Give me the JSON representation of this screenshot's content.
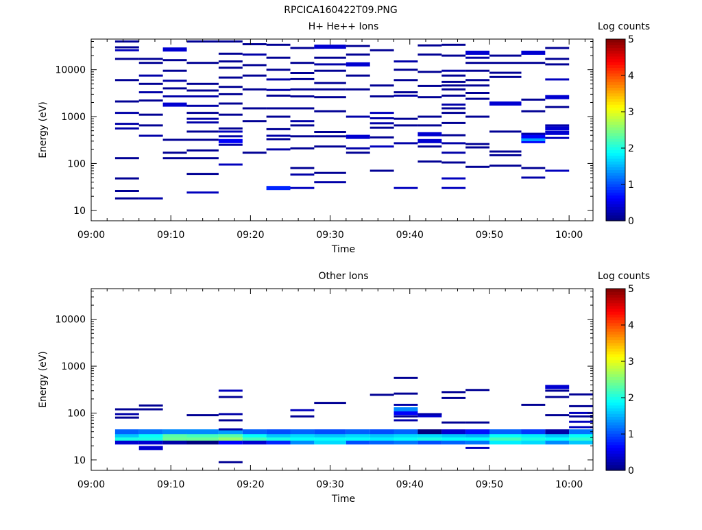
{
  "title": "RPCICA160422T09.PNG",
  "colorbar": {
    "label": "Log counts",
    "min": 0,
    "max": 5,
    "ticks": [
      "0",
      "1",
      "2",
      "3",
      "4",
      "5"
    ],
    "colormap": "jet"
  },
  "chart_data": [
    {
      "type": "heatmap",
      "title": "H+ He++ Ions",
      "xlabel": "Time",
      "ylabel": "Energy (eV)",
      "x_scale": "time",
      "y_scale": "log",
      "xlim": [
        "09:00",
        "10:03"
      ],
      "ylim": [
        6,
        45000
      ],
      "x_ticks": [
        "09:00",
        "09:10",
        "09:20",
        "09:30",
        "09:40",
        "09:50",
        "10:00"
      ],
      "y_ticks": [
        "10",
        "100",
        "1000",
        "10000"
      ],
      "value_label": "Log counts",
      "time_bins": [
        "09:03",
        "09:06",
        "09:09",
        "09:12",
        "09:16",
        "09:19",
        "09:22",
        "09:25",
        "09:28",
        "09:32",
        "09:35",
        "09:38",
        "09:41",
        "09:44",
        "09:47",
        "09:50",
        "09:54",
        "09:57",
        "10:00"
      ],
      "cells": [
        [
          0,
          18,
          0.1
        ],
        [
          0,
          26,
          0.1
        ],
        [
          0,
          48,
          0.1
        ],
        [
          0,
          130,
          0.1
        ],
        [
          0,
          560,
          0.2
        ],
        [
          0,
          700,
          0.2
        ],
        [
          0,
          1200,
          0.2
        ],
        [
          0,
          2100,
          0.1
        ],
        [
          0,
          6000,
          0.1
        ],
        [
          0,
          17000,
          0.1
        ],
        [
          0,
          26000,
          0.3
        ],
        [
          0,
          30000,
          0.1
        ],
        [
          0,
          40000,
          0.1
        ],
        [
          1,
          18,
          0.2
        ],
        [
          1,
          390,
          0.2
        ],
        [
          1,
          650,
          0.1
        ],
        [
          1,
          1100,
          0.1
        ],
        [
          1,
          2200,
          0.1
        ],
        [
          1,
          3300,
          0.2
        ],
        [
          1,
          5000,
          0.1
        ],
        [
          1,
          7500,
          0.2
        ],
        [
          1,
          14000,
          0.1
        ],
        [
          1,
          17000,
          0.1
        ],
        [
          2,
          130,
          0.1
        ],
        [
          2,
          170,
          0.1
        ],
        [
          2,
          320,
          0.1
        ],
        [
          2,
          1800,
          0.4
        ],
        [
          2,
          2700,
          0.2
        ],
        [
          2,
          4000,
          0.1
        ],
        [
          2,
          5800,
          0.2
        ],
        [
          2,
          9500,
          0.1
        ],
        [
          2,
          16000,
          0.1
        ],
        [
          2,
          27000,
          0.4
        ],
        [
          3,
          24,
          0.3
        ],
        [
          3,
          60,
          0.1
        ],
        [
          3,
          130,
          0.1
        ],
        [
          3,
          190,
          0.1
        ],
        [
          3,
          320,
          0.1
        ],
        [
          3,
          480,
          0.1
        ],
        [
          3,
          750,
          0.2
        ],
        [
          3,
          900,
          0.2
        ],
        [
          3,
          1200,
          0.1
        ],
        [
          3,
          1700,
          0.2
        ],
        [
          3,
          2700,
          0.2
        ],
        [
          3,
          3600,
          0.1
        ],
        [
          3,
          5000,
          0.1
        ],
        [
          3,
          14000,
          0.1
        ],
        [
          3,
          40000,
          0.1
        ],
        [
          4,
          95,
          0.3
        ],
        [
          4,
          250,
          0.2
        ],
        [
          4,
          300,
          0.6
        ],
        [
          4,
          380,
          0.2
        ],
        [
          4,
          480,
          0.3
        ],
        [
          4,
          560,
          0.1
        ],
        [
          4,
          1100,
          0.1
        ],
        [
          4,
          1900,
          0.1
        ],
        [
          4,
          3000,
          0.1
        ],
        [
          4,
          4300,
          0.1
        ],
        [
          4,
          6800,
          0.1
        ],
        [
          4,
          11000,
          0.1
        ],
        [
          4,
          15000,
          0.1
        ],
        [
          4,
          22000,
          0.1
        ],
        [
          4,
          40000,
          0.1
        ],
        [
          5,
          170,
          0.1
        ],
        [
          5,
          800,
          0.1
        ],
        [
          5,
          1500,
          0.1
        ],
        [
          5,
          3800,
          0.1
        ],
        [
          5,
          7500,
          0.1
        ],
        [
          5,
          12500,
          0.1
        ],
        [
          5,
          21000,
          0.2
        ],
        [
          5,
          35000,
          0.1
        ],
        [
          6,
          30,
          0.8
        ],
        [
          6,
          200,
          0.2
        ],
        [
          6,
          330,
          0.1
        ],
        [
          6,
          390,
          0.2
        ],
        [
          6,
          540,
          0.1
        ],
        [
          6,
          1000,
          0.1
        ],
        [
          6,
          1500,
          0.1
        ],
        [
          6,
          2800,
          0.1
        ],
        [
          6,
          3700,
          0.2
        ],
        [
          6,
          6200,
          0.2
        ],
        [
          6,
          10000,
          0.1
        ],
        [
          6,
          18000,
          0.1
        ],
        [
          6,
          34000,
          0.1
        ],
        [
          7,
          30,
          0.3
        ],
        [
          7,
          58,
          0.2
        ],
        [
          7,
          80,
          0.1
        ],
        [
          7,
          210,
          0.1
        ],
        [
          7,
          380,
          0.1
        ],
        [
          7,
          650,
          0.1
        ],
        [
          7,
          800,
          0.2
        ],
        [
          7,
          1500,
          0.1
        ],
        [
          7,
          2700,
          0.1
        ],
        [
          7,
          3800,
          0.1
        ],
        [
          7,
          6300,
          0.1
        ],
        [
          7,
          8500,
          0.1
        ],
        [
          7,
          14000,
          0.1
        ],
        [
          7,
          29000,
          0.1
        ],
        [
          8,
          40,
          0.2
        ],
        [
          8,
          63,
          0.1
        ],
        [
          8,
          230,
          0.1
        ],
        [
          8,
          380,
          0.1
        ],
        [
          8,
          470,
          0.1
        ],
        [
          8,
          1300,
          0.1
        ],
        [
          8,
          2600,
          0.1
        ],
        [
          8,
          3800,
          0.1
        ],
        [
          8,
          5200,
          0.1
        ],
        [
          8,
          9500,
          0.1
        ],
        [
          8,
          13000,
          0.2
        ],
        [
          8,
          18000,
          0.1
        ],
        [
          8,
          31000,
          0.4
        ],
        [
          9,
          170,
          0.1
        ],
        [
          9,
          210,
          0.2
        ],
        [
          9,
          370,
          0.4
        ],
        [
          9,
          1000,
          0.2
        ],
        [
          9,
          3800,
          0.1
        ],
        [
          9,
          7500,
          0.1
        ],
        [
          9,
          13000,
          0.4
        ],
        [
          9,
          21000,
          0.1
        ],
        [
          9,
          32000,
          0.1
        ],
        [
          10,
          70,
          0.1
        ],
        [
          10,
          230,
          0.3
        ],
        [
          10,
          360,
          0.1
        ],
        [
          10,
          580,
          0.1
        ],
        [
          10,
          720,
          0.2
        ],
        [
          10,
          920,
          0.2
        ],
        [
          10,
          1200,
          0.3
        ],
        [
          10,
          2700,
          0.1
        ],
        [
          10,
          4600,
          0.1
        ],
        [
          10,
          26000,
          0.1
        ],
        [
          11,
          30,
          0.3
        ],
        [
          11,
          270,
          0.2
        ],
        [
          11,
          650,
          0.1
        ],
        [
          11,
          900,
          0.1
        ],
        [
          11,
          2800,
          0.2
        ],
        [
          11,
          3300,
          0.1
        ],
        [
          11,
          6000,
          0.1
        ],
        [
          11,
          10000,
          0.1
        ],
        [
          11,
          15000,
          0.2
        ],
        [
          12,
          110,
          0.1
        ],
        [
          12,
          230,
          0.1
        ],
        [
          12,
          300,
          0.4
        ],
        [
          12,
          420,
          0.4
        ],
        [
          12,
          650,
          0.1
        ],
        [
          12,
          1000,
          0.1
        ],
        [
          12,
          2600,
          0.1
        ],
        [
          12,
          4500,
          0.1
        ],
        [
          12,
          9000,
          0.1
        ],
        [
          12,
          21000,
          0.1
        ],
        [
          12,
          33000,
          0.1
        ],
        [
          13,
          30,
          0.3
        ],
        [
          13,
          48,
          0.3
        ],
        [
          13,
          105,
          0.1
        ],
        [
          13,
          170,
          0.2
        ],
        [
          13,
          270,
          0.2
        ],
        [
          13,
          400,
          0.1
        ],
        [
          13,
          730,
          0.1
        ],
        [
          13,
          1200,
          0.1
        ],
        [
          13,
          1500,
          0.1
        ],
        [
          13,
          1800,
          0.2
        ],
        [
          13,
          2800,
          0.1
        ],
        [
          13,
          3800,
          0.1
        ],
        [
          13,
          4600,
          0.1
        ],
        [
          13,
          5500,
          0.1
        ],
        [
          13,
          7500,
          0.1
        ],
        [
          13,
          9500,
          0.2
        ],
        [
          13,
          20000,
          0.1
        ],
        [
          13,
          34000,
          0.1
        ],
        [
          14,
          85,
          0.1
        ],
        [
          14,
          220,
          0.1
        ],
        [
          14,
          260,
          0.1
        ],
        [
          14,
          1000,
          0.1
        ],
        [
          14,
          2400,
          0.1
        ],
        [
          14,
          3200,
          0.1
        ],
        [
          14,
          4600,
          0.1
        ],
        [
          14,
          6000,
          0.1
        ],
        [
          14,
          9500,
          0.1
        ],
        [
          14,
          14000,
          0.1
        ],
        [
          14,
          18000,
          0.2
        ],
        [
          14,
          23000,
          0.4
        ],
        [
          15,
          90,
          0.1
        ],
        [
          15,
          150,
          0.1
        ],
        [
          15,
          180,
          0.1
        ],
        [
          15,
          480,
          0.1
        ],
        [
          15,
          1900,
          0.4
        ],
        [
          15,
          7000,
          0.1
        ],
        [
          15,
          8600,
          0.1
        ],
        [
          15,
          14000,
          0.1
        ],
        [
          15,
          20000,
          0.1
        ],
        [
          16,
          50,
          0.2
        ],
        [
          16,
          80,
          0.1
        ],
        [
          16,
          300,
          0.6
        ],
        [
          16,
          330,
          1.4
        ],
        [
          16,
          380,
          0.6
        ],
        [
          16,
          430,
          0.2
        ],
        [
          16,
          1300,
          0.1
        ],
        [
          16,
          2300,
          0.1
        ],
        [
          16,
          14000,
          0.1
        ],
        [
          16,
          23000,
          0.4
        ],
        [
          17,
          70,
          0.3
        ],
        [
          17,
          350,
          0.3
        ],
        [
          17,
          450,
          0.4
        ],
        [
          17,
          560,
          0.4
        ],
        [
          17,
          650,
          0.2
        ],
        [
          17,
          1600,
          0.1
        ],
        [
          17,
          2600,
          0.4
        ],
        [
          17,
          6200,
          0.3
        ],
        [
          17,
          13000,
          0.1
        ],
        [
          17,
          17000,
          0.1
        ],
        [
          17,
          29000,
          0.1
        ]
      ]
    },
    {
      "type": "heatmap",
      "title": "Other Ions",
      "xlabel": "Time",
      "ylabel": "Energy (eV)",
      "x_scale": "time",
      "y_scale": "log",
      "xlim": [
        "09:00",
        "10:03"
      ],
      "ylim": [
        6,
        45000
      ],
      "x_ticks": [
        "09:00",
        "09:10",
        "09:20",
        "09:30",
        "09:40",
        "09:50",
        "10:00"
      ],
      "y_ticks": [
        "10",
        "100",
        "1000",
        "10000"
      ],
      "value_label": "Log counts",
      "time_bins": [
        "09:03",
        "09:06",
        "09:09",
        "09:12",
        "09:16",
        "09:19",
        "09:22",
        "09:25",
        "09:28",
        "09:32",
        "09:35",
        "09:38",
        "09:41",
        "09:44",
        "09:47",
        "09:50",
        "09:54",
        "09:57",
        "10:00"
      ],
      "band_energies": [
        24,
        29,
        34,
        40
      ],
      "band_values": [
        [
          0.4,
          2.0,
          1.6,
          1.1
        ],
        [
          0.4,
          2.0,
          1.9,
          1.2
        ],
        [
          0.2,
          2.4,
          2.3,
          1.3
        ],
        [
          0.0,
          2.4,
          2.2,
          1.3
        ],
        [
          0.6,
          2.6,
          2.3,
          1.4
        ],
        [
          0.4,
          2.2,
          1.9,
          1.1
        ],
        [
          0.8,
          2.0,
          1.6,
          1.0
        ],
        [
          1.3,
          1.9,
          1.7,
          1.1
        ],
        [
          1.7,
          1.9,
          1.6,
          1.0
        ],
        [
          1.0,
          1.9,
          1.7,
          1.1
        ],
        [
          1.1,
          1.8,
          1.6,
          1.0
        ],
        [
          1.2,
          1.9,
          1.7,
          1.1
        ],
        [
          1.0,
          2.0,
          1.7,
          0.0
        ],
        [
          1.1,
          1.9,
          1.6,
          0.4
        ],
        [
          1.2,
          1.9,
          1.5,
          0.7
        ],
        [
          1.8,
          2.2,
          1.9,
          1.1
        ],
        [
          1.7,
          2.0,
          1.8,
          0.9
        ],
        [
          1.3,
          1.9,
          1.6,
          0.2
        ],
        [
          1.6,
          2.1,
          1.9,
          1.2
        ]
      ],
      "cells": [
        [
          0,
          80,
          0.1
        ],
        [
          0,
          95,
          0.2
        ],
        [
          0,
          120,
          0.1
        ],
        [
          1,
          18,
          0.4
        ],
        [
          1,
          120,
          0.1
        ],
        [
          1,
          145,
          0.1
        ],
        [
          3,
          90,
          0.1
        ],
        [
          4,
          9,
          0.1
        ],
        [
          4,
          70,
          0.1
        ],
        [
          4,
          95,
          0.2
        ],
        [
          4,
          220,
          0.1
        ],
        [
          4,
          300,
          0.3
        ],
        [
          4,
          45,
          0.2
        ],
        [
          7,
          85,
          0.1
        ],
        [
          7,
          115,
          0.3
        ],
        [
          8,
          165,
          0.1
        ],
        [
          10,
          245,
          0.1
        ],
        [
          11,
          70,
          0.2
        ],
        [
          11,
          85,
          0.1
        ],
        [
          11,
          100,
          0.6
        ],
        [
          11,
          120,
          1.3
        ],
        [
          11,
          150,
          0.2
        ],
        [
          11,
          260,
          0.1
        ],
        [
          11,
          560,
          0.1
        ],
        [
          12,
          90,
          0.4
        ],
        [
          12,
          95,
          0.2
        ],
        [
          13,
          63,
          0.1
        ],
        [
          13,
          210,
          0.1
        ],
        [
          13,
          280,
          0.1
        ],
        [
          14,
          18,
          0.3
        ],
        [
          14,
          63,
          0.1
        ],
        [
          14,
          310,
          0.1
        ],
        [
          16,
          150,
          0.1
        ],
        [
          17,
          90,
          0.1
        ],
        [
          17,
          220,
          0.1
        ],
        [
          17,
          300,
          0.1
        ],
        [
          17,
          360,
          0.4
        ],
        [
          18,
          50,
          0.3
        ],
        [
          18,
          65,
          0.3
        ],
        [
          18,
          85,
          0.1
        ],
        [
          18,
          100,
          0.3
        ],
        [
          18,
          140,
          0.1
        ],
        [
          18,
          250,
          0.1
        ]
      ]
    }
  ]
}
